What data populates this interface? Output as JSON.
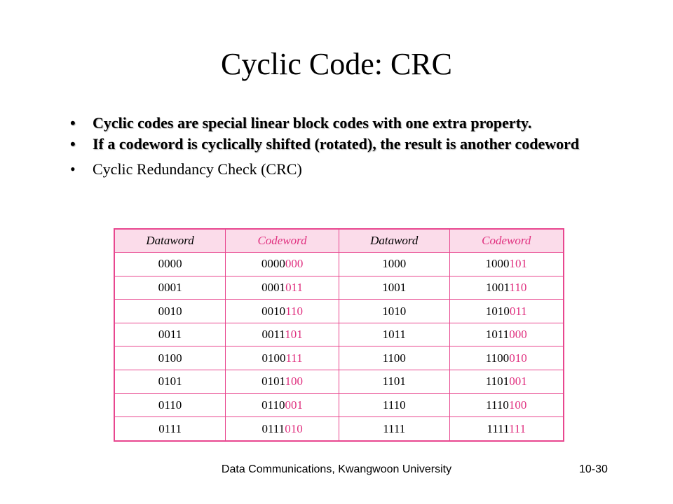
{
  "slide": {
    "title": "Cyclic Code: CRC",
    "bullets": [
      {
        "text": "Cyclic codes are special linear block codes with one extra property.",
        "bold": true
      },
      {
        "text": "If a codeword is cyclically shifted (rotated), the result is another codeword",
        "bold": true
      },
      {
        "text": "Cyclic Redundancy Check (CRC)",
        "bold": false
      }
    ],
    "bullet_symbol": "•"
  },
  "table": {
    "headers": [
      "Dataword",
      "Codeword",
      "Dataword",
      "Codeword"
    ],
    "rows": [
      [
        "0000",
        "0000",
        "000",
        "1000",
        "1000",
        "101"
      ],
      [
        "0001",
        "0001",
        "011",
        "1001",
        "1001",
        "110"
      ],
      [
        "0010",
        "0010",
        "110",
        "1010",
        "1010",
        "011"
      ],
      [
        "0011",
        "0011",
        "101",
        "1011",
        "1011",
        "000"
      ],
      [
        "0100",
        "0100",
        "111",
        "1100",
        "1100",
        "010"
      ],
      [
        "0101",
        "0101",
        "100",
        "1101",
        "1101",
        "001"
      ],
      [
        "0110",
        "0110",
        "001",
        "1110",
        "1110",
        "100"
      ],
      [
        "0111",
        "0111",
        "010",
        "1111",
        "1111",
        "111"
      ]
    ]
  },
  "footer": {
    "center": "Data Communications, Kwangwoon University",
    "page": "10-30"
  },
  "colors": {
    "accent": "#e0307f",
    "border": "#e8478f",
    "header_bg": "#fbdcea"
  }
}
